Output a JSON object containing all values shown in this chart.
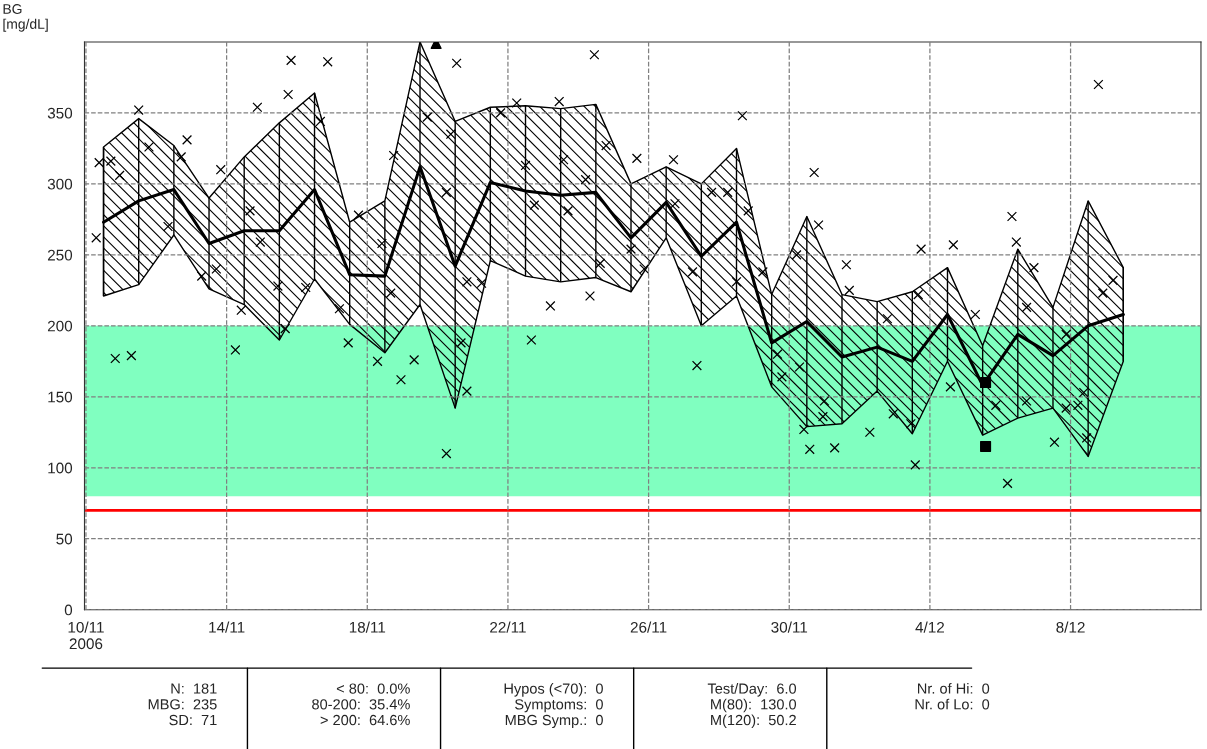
{
  "chart_data": {
    "type": "line",
    "ylabel": "BG\n[mg/dL]",
    "xlim": [
      "2006-11-09T23:00",
      "2006-12-11T17:00"
    ],
    "ylim": [
      0,
      400
    ],
    "xticks": [
      {
        "value": "2006-11-10",
        "label": "10/11\n2006"
      },
      {
        "value": "2006-11-14",
        "label": "14/11"
      },
      {
        "value": "2006-11-18",
        "label": "18/11"
      },
      {
        "value": "2006-11-22",
        "label": "22/11"
      },
      {
        "value": "2006-11-26",
        "label": "26/11"
      },
      {
        "value": "2006-11-30",
        "label": "30/11"
      },
      {
        "value": "2006-12-04",
        "label": "4/12"
      },
      {
        "value": "2006-12-08",
        "label": "8/12"
      }
    ],
    "yticks": [
      0,
      50,
      100,
      150,
      200,
      250,
      300,
      350
    ],
    "grid": true,
    "bands": [
      {
        "axis": "y",
        "from": 80,
        "to": 200,
        "color": "#80ffc0"
      }
    ],
    "ref_lines": [
      {
        "axis": "y",
        "value": 70,
        "color": "#ff0000"
      }
    ],
    "series": [
      {
        "color": "#000000",
        "marker": "none",
        "line_style": "solid",
        "x": [
          "2006-11-10T12:00",
          "2006-11-11T12:00",
          "2006-11-12T12:00",
          "2006-11-13T12:00",
          "2006-11-14T12:00",
          "2006-11-15T12:00",
          "2006-11-16T12:00",
          "2006-11-17T12:00",
          "2006-11-18T12:00",
          "2006-11-19T12:00",
          "2006-11-20T12:00",
          "2006-11-21T12:00",
          "2006-11-22T12:00",
          "2006-11-23T12:00",
          "2006-11-24T12:00",
          "2006-11-25T12:00",
          "2006-11-26T12:00",
          "2006-11-27T12:00",
          "2006-11-28T12:00",
          "2006-11-29T12:00",
          "2006-11-30T12:00",
          "2006-12-01T12:00",
          "2006-12-02T12:00",
          "2006-12-03T12:00",
          "2006-12-04T12:00",
          "2006-12-05T12:00",
          "2006-12-06T12:00",
          "2006-12-07T12:00",
          "2006-12-08T12:00",
          "2006-12-09T12:00"
        ],
        "values": [
          273,
          288,
          296,
          258,
          267,
          267,
          296,
          236,
          235,
          312,
          242,
          301,
          295,
          292,
          294,
          262,
          287,
          249,
          273,
          188,
          203,
          178,
          185,
          175,
          208,
          158,
          194,
          179,
          200,
          208
        ],
        "lower": [
          221,
          229,
          264,
          226,
          215,
          190,
          233,
          201,
          181,
          215,
          142,
          246,
          235,
          231,
          234,
          224,
          262,
          200,
          221,
          157,
          129,
          131,
          154,
          124,
          175,
          123,
          135,
          142,
          108,
          175
        ],
        "upper": [
          326,
          346,
          327,
          290,
          319,
          343,
          364,
          273,
          288,
          400,
          344,
          354,
          355,
          353,
          356,
          300,
          312,
          300,
          325,
          222,
          277,
          222,
          217,
          224,
          241,
          186,
          254,
          213,
          288,
          241
        ],
        "errors": [
          [
            221,
            326
          ],
          [
            229,
            346
          ],
          [
            264,
            327
          ],
          [
            226,
            290
          ],
          [
            215,
            319
          ],
          [
            190,
            343
          ],
          [
            233,
            364
          ],
          [
            201,
            273
          ],
          [
            181,
            288
          ],
          [
            215,
            400
          ],
          [
            142,
            344
          ],
          [
            246,
            354
          ],
          [
            235,
            355
          ],
          [
            231,
            353
          ],
          [
            234,
            356
          ],
          [
            224,
            300
          ],
          [
            262,
            312
          ],
          [
            200,
            300
          ],
          [
            221,
            325
          ],
          [
            157,
            222
          ],
          [
            129,
            277
          ],
          [
            131,
            222
          ],
          [
            154,
            217
          ],
          [
            124,
            224
          ],
          [
            175,
            241
          ],
          [
            123,
            186
          ],
          [
            135,
            254
          ],
          [
            142,
            213
          ],
          [
            108,
            288
          ],
          [
            175,
            241
          ]
        ]
      },
      {
        "type": "scatter",
        "marker": "cross",
        "color": "#000000",
        "x": [
          "2006-11-10T07:00",
          "2006-11-10T09:00",
          "2006-11-10T17:00",
          "2006-11-10T23:00",
          "2006-11-10T20:00",
          "2006-11-11T07:00",
          "2006-11-11T12:00",
          "2006-11-11T19:00",
          "2006-11-12T21:00",
          "2006-11-12T08:00",
          "2006-11-12T17:00",
          "2006-11-13T07:00",
          "2006-11-13T17:00",
          "2006-11-13T20:00",
          "2006-11-14T06:00",
          "2006-11-14T10:00",
          "2006-11-14T21:00",
          "2006-11-14T23:00",
          "2006-11-14T16:00",
          "2006-11-15T18:00",
          "2006-11-15T20:00",
          "2006-11-15T11:00",
          "2006-11-15T16:00",
          "2006-11-16T21:00",
          "2006-11-16T16:00",
          "2006-11-16T06:00",
          "2006-11-17T05:00",
          "2006-11-17T11:00",
          "2006-11-17T18:00",
          "2006-11-18T07:00",
          "2006-11-18T23:00",
          "2006-11-19T08:00",
          "2006-11-18T10:00",
          "2006-11-18T18:00",
          "2006-11-18T16:00",
          "2006-11-19T17:00",
          "2006-11-20T06:00",
          "2006-11-20T06:00",
          "2006-11-20T13:00",
          "2006-11-20T09:00",
          "2006-11-20T20:00",
          "2006-11-21T06:00",
          "2006-11-20T16:00",
          "2006-11-20T20:00",
          "2006-11-21T19:00",
          "2006-11-22T06:00",
          "2006-11-22T12:00",
          "2006-11-22T18:00",
          "2006-11-22T16:00",
          "2006-11-23T05:00",
          "2006-11-23T11:00",
          "2006-11-23T14:00",
          "2006-11-23T17:00",
          "2006-11-24T05:00",
          "2006-11-24T08:00",
          "2006-11-24T11:00",
          "2006-11-24T19:00",
          "2006-11-24T15:00",
          "2006-11-25T16:00",
          "2006-11-25T12:00",
          "2006-11-25T21:00",
          "2006-11-26T17:00",
          "2006-11-26T18:00",
          "2006-11-27T06:00",
          "2006-11-27T09:00",
          "2006-11-27T19:00",
          "2006-11-28T06:00",
          "2006-11-28T16:00",
          "2006-11-28T12:00",
          "2006-11-28T20:00",
          "2006-11-29T06:00",
          "2006-11-29T16:00",
          "2006-11-29T19:00",
          "2006-11-30T05:00",
          "2006-11-30T07:00",
          "2006-11-30T10:00",
          "2006-11-30T14:00",
          "2006-11-30T17:00",
          "2006-11-30T20:00",
          "2006-12-01T07:00",
          "2006-12-01T15:00",
          "2006-12-01T17:00",
          "2006-12-01T00:00",
          "2006-11-30T23:00",
          "2006-12-02T07:00",
          "2006-12-02T19:00",
          "2006-12-03T18:00",
          "2006-12-03T16:00",
          "2006-12-03T14:00",
          "2006-12-02T23:00",
          "2006-12-03T11:00",
          "2006-12-04T16:00",
          "2006-12-04T14:00",
          "2006-12-05T07:00",
          "2006-12-06T08:00",
          "2006-12-06T11:00",
          "2006-12-06T05:00",
          "2006-12-06T23:00",
          "2006-12-06T18:00",
          "2006-12-06T18:00",
          "2006-12-05T21:00",
          "2006-12-07T13:00",
          "2006-12-07T21:00",
          "2006-12-08T05:00",
          "2006-12-08T19:00",
          "2006-12-08T22:00",
          "2006-12-09T05:00",
          "2006-12-08T11:00",
          "2006-12-08T09:00",
          "2006-12-07T21:00"
        ],
        "values": [
          262,
          315,
          316,
          306,
          177,
          179,
          352,
          326,
          331,
          270,
          319,
          235,
          240,
          310,
          183,
          211,
          354,
          259,
          281,
          363,
          387,
          228,
          198,
          386,
          344,
          227,
          212,
          188,
          278,
          175,
          162,
          176,
          258,
          320,
          223,
          347,
          110,
          294,
          385,
          335,
          231,
          230,
          188,
          154,
          350,
          357,
          313,
          285,
          190,
          214,
          358,
          317,
          281,
          303,
          221,
          391,
          327,
          244,
          318,
          254,
          240,
          317,
          286,
          238,
          172,
          294,
          294,
          348,
          231,
          281,
          238,
          180,
          164,
          250,
          171,
          127,
          113,
          308,
          271,
          114,
          243,
          225,
          147,
          136,
          125,
          205,
          254,
          222,
          102,
          138,
          131,
          257,
          157,
          208,
          277,
          259,
          89,
          241,
          213,
          147,
          144,
          118,
          142,
          144,
          370,
          223,
          232,
          121,
          153,
          194
        ]
      },
      {
        "type": "scatter",
        "marker": "square",
        "color": "#000000",
        "x": [
          "2006-12-05T14:00",
          "2006-12-05T14:00"
        ],
        "values": [
          160,
          115
        ]
      },
      {
        "type": "scatter",
        "marker": "triangle",
        "color": "#000000",
        "x": [
          "2006-11-19T23:00"
        ],
        "values": [
          399
        ]
      }
    ],
    "annotations": [
      "N:  181",
      "MBG:  235",
      "SD:  71",
      "< 80:  0.0%",
      "80-200:  35.4%",
      "> 200:  64.6%",
      "Hypos (<70):  0",
      "Symptoms:  0",
      "MBG Symp.:  0",
      "Test/Day:  6.0",
      "M(80):  130.0",
      "M(120):  50.2",
      "Nr. of Hi:  0",
      "Nr. of Lo:  0"
    ]
  }
}
